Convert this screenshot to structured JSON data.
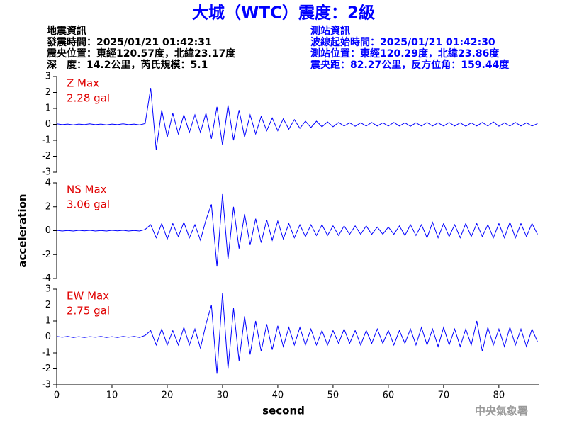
{
  "header": {
    "title": "大城（WTC）震度：2級",
    "left_lines": [
      "地震資訊",
      "發震時間：2025/01/21 01:42:31",
      "震央位置：東經120.57度，北緯23.17度",
      "深　度：14.2公里，芮氏規模：5.1"
    ],
    "right_lines": [
      "測站資訊",
      "波線起始時間：2025/01/21 01:42:30",
      "測站位置：東經120.29度，北緯23.86度",
      "震央距：82.27公里，反方位角：159.44度"
    ]
  },
  "footer": "中央氣象署",
  "chart_data": [
    {
      "type": "line",
      "annotations": [
        "Z Max",
        "2.28 gal"
      ],
      "xlim": [
        0,
        87.2
      ],
      "ylim": [
        -3,
        3
      ],
      "yticks": [
        -3,
        -2,
        -1,
        0,
        1,
        2,
        3
      ],
      "x": [
        0,
        1,
        2,
        3,
        4,
        5,
        6,
        7,
        8,
        9,
        10,
        11,
        12,
        13,
        14,
        15,
        16,
        17,
        18,
        19,
        20,
        21,
        22,
        23,
        24,
        25,
        26,
        27,
        28,
        29,
        30,
        31,
        32,
        33,
        34,
        35,
        36,
        37,
        38,
        39,
        40,
        41,
        42,
        43,
        44,
        45,
        46,
        47,
        48,
        49,
        50,
        51,
        52,
        53,
        54,
        55,
        56,
        57,
        58,
        59,
        60,
        61,
        62,
        63,
        64,
        65,
        66,
        67,
        68,
        69,
        70,
        71,
        72,
        73,
        74,
        75,
        76,
        77,
        78,
        79,
        80,
        81,
        82,
        83,
        84,
        85,
        86,
        87
      ],
      "series": [
        {
          "color": "#0000ff",
          "values": [
            0.03,
            -0.02,
            0.02,
            -0.03,
            0.02,
            -0.02,
            0.03,
            -0.02,
            0.02,
            -0.03,
            0.02,
            -0.02,
            0.03,
            -0.02,
            0.02,
            -0.03,
            0.05,
            2.28,
            -1.6,
            0.9,
            -0.8,
            0.7,
            -0.6,
            0.6,
            -0.5,
            0.6,
            -0.5,
            0.7,
            -0.9,
            1.1,
            -1.3,
            1.2,
            -1.0,
            0.9,
            -0.8,
            0.6,
            -0.6,
            0.5,
            -0.4,
            0.4,
            -0.4,
            0.35,
            -0.3,
            0.3,
            -0.25,
            0.2,
            -0.2,
            0.2,
            -0.15,
            0.15,
            -0.15,
            0.12,
            -0.1,
            0.1,
            -0.12,
            0.1,
            -0.1,
            0.12,
            -0.1,
            0.1,
            -0.1,
            0.12,
            -0.1,
            0.1,
            -0.12,
            0.1,
            -0.1,
            0.12,
            -0.1,
            0.1,
            -0.1,
            0.12,
            -0.1,
            0.1,
            -0.12,
            0.1,
            -0.1,
            0.12,
            -0.1,
            0.15,
            -0.12,
            0.1,
            -0.1,
            0.12,
            -0.1,
            0.1,
            -0.1,
            0.05
          ]
        }
      ]
    },
    {
      "type": "line",
      "annotations": [
        "NS Max",
        "3.06 gal"
      ],
      "ylabel": "acceleration",
      "xlim": [
        0,
        87.2
      ],
      "ylim": [
        -4,
        4
      ],
      "yticks": [
        -4,
        -2,
        0,
        2,
        4
      ],
      "x": [
        0,
        1,
        2,
        3,
        4,
        5,
        6,
        7,
        8,
        9,
        10,
        11,
        12,
        13,
        14,
        15,
        16,
        17,
        18,
        19,
        20,
        21,
        22,
        23,
        24,
        25,
        26,
        27,
        28,
        29,
        30,
        31,
        32,
        33,
        34,
        35,
        36,
        37,
        38,
        39,
        40,
        41,
        42,
        43,
        44,
        45,
        46,
        47,
        48,
        49,
        50,
        51,
        52,
        53,
        54,
        55,
        56,
        57,
        58,
        59,
        60,
        61,
        62,
        63,
        64,
        65,
        66,
        67,
        68,
        69,
        70,
        71,
        72,
        73,
        74,
        75,
        76,
        77,
        78,
        79,
        80,
        81,
        82,
        83,
        84,
        85,
        86,
        87
      ],
      "series": [
        {
          "color": "#0000ff",
          "values": [
            0.03,
            -0.03,
            0.02,
            -0.03,
            0.03,
            -0.02,
            0.03,
            -0.03,
            0.02,
            -0.03,
            0.03,
            -0.02,
            0.03,
            -0.03,
            0.02,
            -0.03,
            0.1,
            0.5,
            -0.6,
            0.6,
            -0.7,
            0.6,
            -0.5,
            0.7,
            -0.6,
            0.5,
            -0.8,
            0.9,
            2.2,
            -3.0,
            3.06,
            -2.4,
            2.0,
            -1.5,
            1.4,
            -1.2,
            1.0,
            -1.0,
            0.9,
            -0.8,
            0.8,
            -0.7,
            0.6,
            -0.6,
            0.5,
            -0.5,
            0.5,
            -0.4,
            0.5,
            -0.4,
            0.4,
            -0.4,
            0.4,
            -0.3,
            0.4,
            -0.3,
            0.4,
            -0.3,
            0.3,
            -0.3,
            0.3,
            -0.3,
            0.4,
            -0.4,
            0.5,
            -0.4,
            0.5,
            -0.6,
            0.7,
            -0.6,
            0.6,
            -0.5,
            0.5,
            -0.6,
            0.6,
            -0.5,
            0.6,
            -0.5,
            0.5,
            -0.6,
            0.6,
            -0.6,
            0.7,
            -0.6,
            0.6,
            -0.5,
            0.6,
            -0.3
          ]
        }
      ]
    },
    {
      "type": "line",
      "annotations": [
        "EW Max",
        "2.75 gal"
      ],
      "xlabel": "second",
      "xlim": [
        0,
        87.2
      ],
      "xticks": [
        0,
        10,
        20,
        30,
        40,
        50,
        60,
        70,
        80
      ],
      "ylim": [
        -3,
        3
      ],
      "yticks": [
        -3,
        -2,
        -1,
        0,
        1,
        2,
        3
      ],
      "x": [
        0,
        1,
        2,
        3,
        4,
        5,
        6,
        7,
        8,
        9,
        10,
        11,
        12,
        13,
        14,
        15,
        16,
        17,
        18,
        19,
        20,
        21,
        22,
        23,
        24,
        25,
        26,
        27,
        28,
        29,
        30,
        31,
        32,
        33,
        34,
        35,
        36,
        37,
        38,
        39,
        40,
        41,
        42,
        43,
        44,
        45,
        46,
        47,
        48,
        49,
        50,
        51,
        52,
        53,
        54,
        55,
        56,
        57,
        58,
        59,
        60,
        61,
        62,
        63,
        64,
        65,
        66,
        67,
        68,
        69,
        70,
        71,
        72,
        73,
        74,
        75,
        76,
        77,
        78,
        79,
        80,
        81,
        82,
        83,
        84,
        85,
        86,
        87
      ],
      "series": [
        {
          "color": "#0000ff",
          "values": [
            0.03,
            -0.02,
            0.03,
            -0.03,
            0.02,
            -0.03,
            0.02,
            -0.02,
            0.03,
            -0.03,
            0.02,
            -0.03,
            0.03,
            -0.02,
            0.03,
            -0.03,
            0.1,
            0.4,
            -0.5,
            0.5,
            -0.5,
            0.4,
            -0.5,
            0.6,
            -0.5,
            0.5,
            -0.7,
            0.8,
            2.0,
            -2.3,
            2.75,
            -2.0,
            1.8,
            -1.5,
            1.3,
            -1.1,
            1.0,
            -0.9,
            0.8,
            -0.8,
            0.7,
            -0.6,
            0.6,
            -0.5,
            0.6,
            -0.5,
            0.5,
            -0.5,
            0.4,
            -0.5,
            0.4,
            -0.4,
            0.5,
            -0.4,
            0.4,
            -0.5,
            0.4,
            -0.4,
            0.5,
            -0.4,
            0.4,
            -0.5,
            0.4,
            -0.4,
            0.5,
            -0.5,
            0.6,
            -0.5,
            0.5,
            -0.6,
            0.6,
            -0.5,
            0.5,
            -0.6,
            0.5,
            -0.5,
            1.0,
            -0.9,
            0.6,
            -0.5,
            0.5,
            -0.6,
            0.6,
            -0.5,
            0.5,
            -0.6,
            0.5,
            -0.3
          ]
        }
      ]
    }
  ]
}
